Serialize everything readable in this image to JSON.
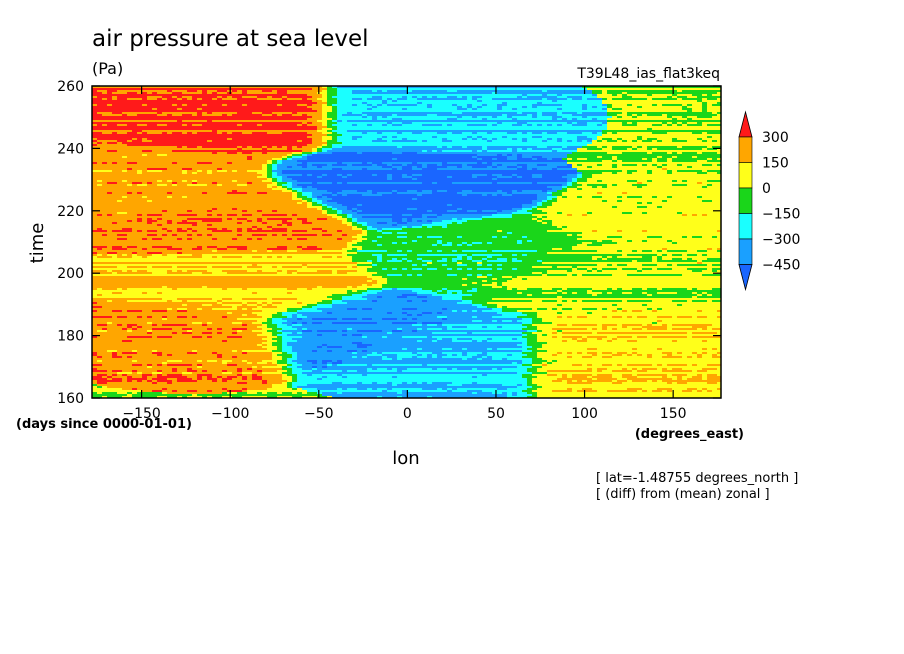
{
  "chart_data": {
    "type": "heatmap",
    "title": "air pressure at sea level",
    "units": "(Pa)",
    "experiment": "T39L48_ias_flat3keq",
    "xlabel": "lon",
    "xunits": "(degrees_east)",
    "ylabel": "time",
    "yunits": "(days since 0000-01-01)",
    "xlim": [
      -178,
      177
    ],
    "ylim": [
      160,
      260
    ],
    "xticks": [
      -150,
      -100,
      -50,
      0,
      50,
      100,
      150
    ],
    "yticks": [
      160,
      180,
      200,
      220,
      240,
      260
    ],
    "notes": [
      "[ lat=-1.48755 degrees_north ]",
      "[ (diff) from (mean) zonal ]"
    ],
    "colorbar": {
      "labels": [
        "300",
        "150",
        "0",
        "−150",
        "−300",
        "−450"
      ],
      "levels": [
        300,
        150,
        0,
        -150,
        -300,
        -450
      ],
      "colors": [
        "#ff1a1a",
        "#ffa600",
        "#ffff1a",
        "#1ad61a",
        "#1affff",
        "#1aa0ff",
        "#1a66ff"
      ]
    },
    "field_samples": [
      {
        "lon": -100,
        "time": 250,
        "value": 320
      },
      {
        "lon": -150,
        "time": 228,
        "value": 220
      },
      {
        "lon": -100,
        "time": 218,
        "value": 260
      },
      {
        "lon": -120,
        "time": 180,
        "value": 240
      },
      {
        "lon": -90,
        "time": 195,
        "value": 150
      },
      {
        "lon": -5,
        "time": 228,
        "value": -480
      },
      {
        "lon": 10,
        "time": 250,
        "value": -300
      },
      {
        "lon": -30,
        "time": 182,
        "value": -400
      },
      {
        "lon": 20,
        "time": 175,
        "value": -320
      },
      {
        "lon": 50,
        "time": 205,
        "value": -100
      },
      {
        "lon": 100,
        "time": 200,
        "value": 30
      },
      {
        "lon": 150,
        "time": 215,
        "value": 60
      },
      {
        "lon": 120,
        "time": 175,
        "value": 110
      }
    ]
  }
}
